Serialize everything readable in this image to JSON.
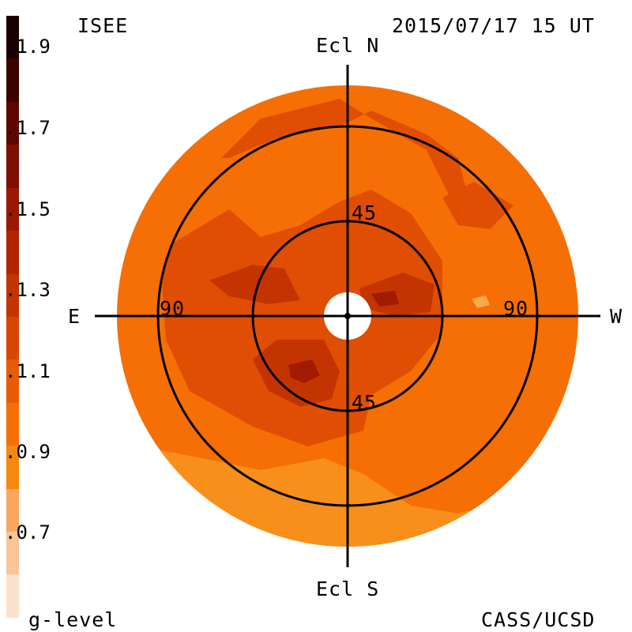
{
  "header": {
    "source": "ISEE",
    "timestamp": "2015/07/17 15 UT"
  },
  "footer": {
    "units_label": "g-level",
    "credit": "CASS/UCSD"
  },
  "directions": {
    "north": "Ecl N",
    "south": "Ecl S",
    "east": "E",
    "west": "W"
  },
  "ring_labels": {
    "inner_top": "45",
    "inner_bottom": "45",
    "outer_left": "90",
    "outer_right": "90"
  },
  "colorbar": {
    "ticks": [
      ".1.9",
      ".1.7",
      ".1.5",
      ".1.3",
      ".1.1",
      ".0.9",
      ".0.7"
    ],
    "colors": [
      "#fbe2cc",
      "#f9c496",
      "#f8a75c",
      "#f6870f",
      "#f56f05",
      "#e85b05",
      "#d84702",
      "#c43400",
      "#b02500",
      "#9a1800",
      "#7e0e00",
      "#5e0700",
      "#3b0300",
      "#1a0000"
    ]
  },
  "map_colors": {
    "background": "#f56f05",
    "darker": "#e04e04",
    "dark": "#c43400",
    "darkest": "#a01b00",
    "lighter": "#f88f1a",
    "lightest": "#f9a84a"
  }
}
